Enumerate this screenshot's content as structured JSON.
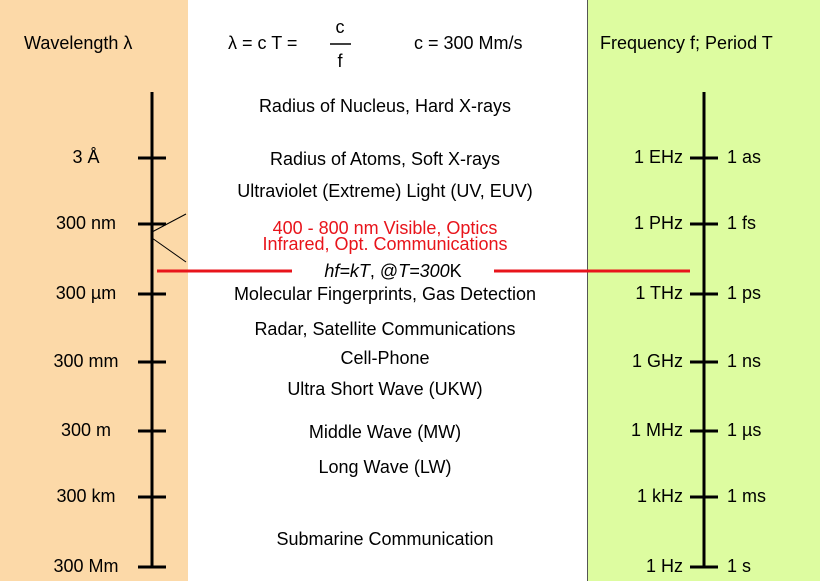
{
  "header": {
    "wavelength": "Wavelength  λ",
    "formula": {
      "lhs": "λ = c T =",
      "numerator": "c",
      "denominator": "f"
    },
    "speed": "c = 300 Mm/s",
    "frequency": "Frequency f; Period  T"
  },
  "wavelengths": [
    "3 Å",
    "300 nm",
    "300 µm",
    "300 mm",
    "300 m",
    "300 km",
    "300 Mm"
  ],
  "frequencies": [
    "1 EHz",
    "1 PHz",
    "1 THz",
    "1 GHz",
    "1 MHz",
    "1 kHz",
    "1 Hz"
  ],
  "periods": [
    "1 as",
    "1 fs",
    "1 ps",
    "1 ns",
    "1 µs",
    "1 ms",
    "1 s"
  ],
  "bands": [
    "Radius of Nucleus, Hard X-rays",
    "Radius of Atoms, Soft X-rays",
    "Ultraviolet (Extreme) Light (UV, EUV)",
    "400 - 800 nm Visible, Optics",
    "Infrared, Opt. Communications",
    "Molecular Fingerprints, Gas Detection",
    "Radar, Satellite Communications",
    "Cell-Phone",
    "Ultra Short Wave (UKW)",
    "Middle Wave (MW)",
    "Long Wave (LW)",
    "Submarine Communication"
  ],
  "thermal": {
    "parts": [
      "hf=kT",
      ", @",
      "T=300",
      "K"
    ],
    "color": "#e8141b"
  }
}
